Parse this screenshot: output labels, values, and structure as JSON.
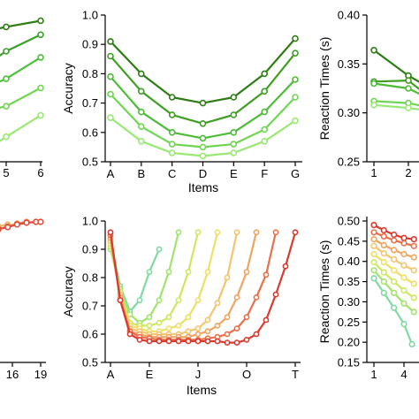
{
  "chart_data": [
    {
      "id": "top-left",
      "type": "line",
      "xticks": [
        "5",
        "6"
      ],
      "x_values": [
        5,
        6
      ],
      "series": [
        {
          "color": "#2e7d14",
          "points": [
            [
              4.6,
              0.38
            ],
            [
              5,
              0.385
            ],
            [
              6,
              0.395
            ]
          ]
        },
        {
          "color": "#39a12a",
          "points": [
            [
              4.6,
              0.33
            ],
            [
              5,
              0.345
            ],
            [
              6,
              0.372
            ]
          ]
        },
        {
          "color": "#4cc13a",
          "points": [
            [
              4.6,
              0.29
            ],
            [
              5,
              0.3
            ],
            [
              6,
              0.335
            ]
          ]
        },
        {
          "color": "#6fd553",
          "points": [
            [
              4.6,
              0.25
            ],
            [
              5,
              0.255
            ],
            [
              6,
              0.285
            ]
          ]
        },
        {
          "color": "#98e874",
          "points": [
            [
              4.6,
              0.19
            ],
            [
              5,
              0.205
            ],
            [
              6,
              0.24
            ]
          ]
        }
      ]
    },
    {
      "id": "top-middle",
      "type": "line",
      "categories": [
        "A",
        "B",
        "C",
        "D",
        "E",
        "F",
        "G"
      ],
      "xlabel": "Items",
      "ylabel": "Accuracy",
      "ylim": [
        0.5,
        1.0
      ],
      "yticks": [
        "0.5",
        "0.6",
        "0.7",
        "0.8",
        "0.9",
        "1.0"
      ],
      "series": [
        {
          "color": "#2e7d14",
          "values": [
            0.91,
            0.8,
            0.72,
            0.7,
            0.72,
            0.8,
            0.92
          ]
        },
        {
          "color": "#3f9e24",
          "values": [
            0.86,
            0.74,
            0.66,
            0.63,
            0.66,
            0.74,
            0.87
          ]
        },
        {
          "color": "#4cbb35",
          "values": [
            0.79,
            0.67,
            0.6,
            0.58,
            0.6,
            0.67,
            0.78
          ]
        },
        {
          "color": "#6fd553",
          "values": [
            0.73,
            0.62,
            0.56,
            0.55,
            0.56,
            0.61,
            0.72
          ]
        },
        {
          "color": "#98e874",
          "values": [
            0.65,
            0.57,
            0.53,
            0.52,
            0.53,
            0.57,
            0.64
          ]
        }
      ]
    },
    {
      "id": "top-right",
      "type": "line",
      "xticks": [
        "1",
        "2"
      ],
      "ylabel": "Reaction Times (s)",
      "ylim": [
        0.25,
        0.4
      ],
      "yticks": [
        "0.25",
        "0.30",
        "0.35",
        "0.40"
      ],
      "series": [
        {
          "color": "#2e7d14",
          "points": [
            [
              1,
              0.364
            ],
            [
              2,
              0.338
            ],
            [
              2.4,
              0.33
            ]
          ]
        },
        {
          "color": "#3f9e24",
          "points": [
            [
              1,
              0.332
            ],
            [
              2,
              0.333
            ],
            [
              2.4,
              0.322
            ]
          ]
        },
        {
          "color": "#4cbb35",
          "points": [
            [
              1,
              0.33
            ],
            [
              2,
              0.325
            ],
            [
              2.4,
              0.318
            ]
          ]
        },
        {
          "color": "#6fd553",
          "points": [
            [
              1,
              0.312
            ],
            [
              2,
              0.31
            ],
            [
              2.4,
              0.307
            ]
          ]
        },
        {
          "color": "#98e874",
          "points": [
            [
              1,
              0.308
            ],
            [
              2,
              0.305
            ],
            [
              2.4,
              0.303
            ]
          ]
        }
      ]
    },
    {
      "id": "bottom-left",
      "type": "line",
      "xticks": [
        "16",
        "19"
      ],
      "x_values": [
        16,
        19
      ],
      "series": [
        {
          "color": "#e8b86a",
          "points": [
            [
              13.5,
              0.42
            ],
            [
              14.5,
              0.43
            ],
            [
              15.5,
              0.44
            ]
          ]
        },
        {
          "color": "#ec8b4e",
          "points": [
            [
              14.5,
              0.41
            ],
            [
              15.5,
              0.43
            ],
            [
              16.5,
              0.445
            ],
            [
              17.5,
              0.455
            ]
          ]
        },
        {
          "color": "#e04b3a",
          "points": [
            [
              13.5,
              0.405
            ],
            [
              14.5,
              0.415
            ],
            [
              15.5,
              0.425
            ],
            [
              16.5,
              0.44
            ],
            [
              17.5,
              0.45
            ],
            [
              18.5,
              0.455
            ],
            [
              19,
              0.455
            ]
          ]
        }
      ]
    },
    {
      "id": "bottom-middle",
      "type": "line",
      "categories": [
        "A",
        "E",
        "J",
        "O",
        "T"
      ],
      "xlabel": "Items",
      "ylabel": "Accuracy",
      "ylim": [
        0.5,
        1.0
      ],
      "yticks": [
        "0.5",
        "0.6",
        "0.7",
        "0.8",
        "0.9",
        "1.0"
      ],
      "series": [
        {
          "color": "#7fd9a0",
          "points": [
            [
              0,
              0.93
            ],
            [
              1,
              0.77
            ],
            [
              2,
              0.68
            ],
            [
              3,
              0.72
            ],
            [
              4,
              0.82
            ],
            [
              5,
              0.9
            ]
          ]
        },
        {
          "color": "#a2e36e",
          "points": [
            [
              0,
              0.9
            ],
            [
              1,
              0.76
            ],
            [
              2,
              0.67
            ],
            [
              3,
              0.64
            ],
            [
              4,
              0.66
            ],
            [
              5,
              0.72
            ],
            [
              6,
              0.82
            ],
            [
              7,
              0.96
            ]
          ]
        },
        {
          "color": "#cce860",
          "points": [
            [
              0,
              0.91
            ],
            [
              1,
              0.75
            ],
            [
              2,
              0.64
            ],
            [
              3,
              0.63
            ],
            [
              4,
              0.63
            ],
            [
              5,
              0.64
            ],
            [
              6,
              0.66
            ],
            [
              7,
              0.72
            ],
            [
              8,
              0.82
            ],
            [
              9,
              0.96
            ]
          ]
        },
        {
          "color": "#eedf65",
          "points": [
            [
              0,
              0.92
            ],
            [
              1,
              0.74
            ],
            [
              2,
              0.63
            ],
            [
              3,
              0.62
            ],
            [
              4,
              0.61
            ],
            [
              5,
              0.61
            ],
            [
              6,
              0.62
            ],
            [
              7,
              0.63
            ],
            [
              8,
              0.66
            ],
            [
              9,
              0.72
            ],
            [
              10,
              0.82
            ],
            [
              11,
              0.96
            ]
          ]
        },
        {
          "color": "#f2c56e",
          "points": [
            [
              0,
              0.93
            ],
            [
              1,
              0.74
            ],
            [
              2,
              0.62
            ],
            [
              3,
              0.61
            ],
            [
              4,
              0.6
            ],
            [
              5,
              0.6
            ],
            [
              6,
              0.6
            ],
            [
              7,
              0.6
            ],
            [
              8,
              0.61
            ],
            [
              9,
              0.62
            ],
            [
              10,
              0.65
            ],
            [
              11,
              0.71
            ],
            [
              12,
              0.8
            ],
            [
              13,
              0.96
            ]
          ]
        },
        {
          "color": "#f0a460",
          "points": [
            [
              0,
              0.94
            ],
            [
              1,
              0.73
            ],
            [
              2,
              0.61
            ],
            [
              3,
              0.6
            ],
            [
              4,
              0.59
            ],
            [
              5,
              0.59
            ],
            [
              6,
              0.59
            ],
            [
              7,
              0.59
            ],
            [
              8,
              0.59
            ],
            [
              9,
              0.6
            ],
            [
              10,
              0.61
            ],
            [
              11,
              0.63
            ],
            [
              12,
              0.66
            ],
            [
              13,
              0.73
            ],
            [
              14,
              0.82
            ],
            [
              15,
              0.96
            ]
          ]
        },
        {
          "color": "#e8704a",
          "points": [
            [
              0,
              0.95
            ],
            [
              1,
              0.72
            ],
            [
              2,
              0.61
            ],
            [
              3,
              0.59
            ],
            [
              4,
              0.585
            ],
            [
              5,
              0.58
            ],
            [
              6,
              0.58
            ],
            [
              7,
              0.58
            ],
            [
              8,
              0.58
            ],
            [
              9,
              0.58
            ],
            [
              10,
              0.585
            ],
            [
              11,
              0.59
            ],
            [
              12,
              0.6
            ],
            [
              13,
              0.62
            ],
            [
              14,
              0.66
            ],
            [
              15,
              0.73
            ],
            [
              16,
              0.81
            ],
            [
              17,
              0.96
            ]
          ]
        },
        {
          "color": "#d93a2e",
          "points": [
            [
              0,
              0.96
            ],
            [
              1,
              0.72
            ],
            [
              2,
              0.6
            ],
            [
              3,
              0.58
            ],
            [
              4,
              0.575
            ],
            [
              5,
              0.575
            ],
            [
              6,
              0.575
            ],
            [
              7,
              0.575
            ],
            [
              8,
              0.575
            ],
            [
              9,
              0.575
            ],
            [
              10,
              0.575
            ],
            [
              11,
              0.575
            ],
            [
              12,
              0.57
            ],
            [
              13,
              0.57
            ],
            [
              14,
              0.58
            ],
            [
              15,
              0.6
            ],
            [
              16,
              0.65
            ],
            [
              17,
              0.74
            ],
            [
              18,
              0.84
            ],
            [
              19,
              0.96
            ]
          ]
        }
      ]
    },
    {
      "id": "bottom-right",
      "type": "line",
      "xticks": [
        "1",
        "4"
      ],
      "x_values": [
        1,
        4
      ],
      "ylabel": "Reaction Times (s)",
      "ylim": [
        0.15,
        0.5
      ],
      "yticks": [
        "0.15",
        "0.20",
        "0.25",
        "0.30",
        "0.35",
        "0.40",
        "0.45",
        "0.50"
      ],
      "series": [
        {
          "color": "#d93a2e",
          "points": [
            [
              1,
              0.49
            ],
            [
              2,
              0.477
            ],
            [
              3,
              0.466
            ],
            [
              4,
              0.458
            ],
            [
              5,
              0.455
            ]
          ]
        },
        {
          "color": "#e8704a",
          "points": [
            [
              1,
              0.472
            ],
            [
              2,
              0.462
            ],
            [
              3,
              0.452
            ],
            [
              4,
              0.445
            ],
            [
              5,
              0.438
            ]
          ]
        },
        {
          "color": "#f0a460",
          "points": [
            [
              1,
              0.455
            ],
            [
              2,
              0.44
            ],
            [
              3,
              0.428
            ],
            [
              4,
              0.418
            ],
            [
              5,
              0.41
            ]
          ]
        },
        {
          "color": "#f2c56e",
          "points": [
            [
              1,
              0.438
            ],
            [
              2,
              0.42
            ],
            [
              3,
              0.405
            ],
            [
              4,
              0.39
            ],
            [
              5,
              0.378
            ]
          ]
        },
        {
          "color": "#eedf65",
          "points": [
            [
              1,
              0.418
            ],
            [
              2,
              0.398
            ],
            [
              3,
              0.378
            ],
            [
              4,
              0.36
            ],
            [
              5,
              0.345
            ]
          ]
        },
        {
          "color": "#cce860",
          "points": [
            [
              1,
              0.398
            ],
            [
              2,
              0.373
            ],
            [
              3,
              0.35
            ],
            [
              4,
              0.328
            ],
            [
              5,
              0.31
            ]
          ]
        },
        {
          "color": "#a2e36e",
          "points": [
            [
              1,
              0.378
            ],
            [
              2,
              0.35
            ],
            [
              3,
              0.322
            ],
            [
              4,
              0.296
            ],
            [
              5,
              0.275
            ]
          ]
        },
        {
          "color": "#7fd9a0",
          "points": [
            [
              1,
              0.358
            ],
            [
              2,
              0.322
            ],
            [
              3,
              0.285
            ],
            [
              4,
              0.245
            ],
            [
              4.8,
              0.195
            ]
          ]
        }
      ]
    }
  ]
}
